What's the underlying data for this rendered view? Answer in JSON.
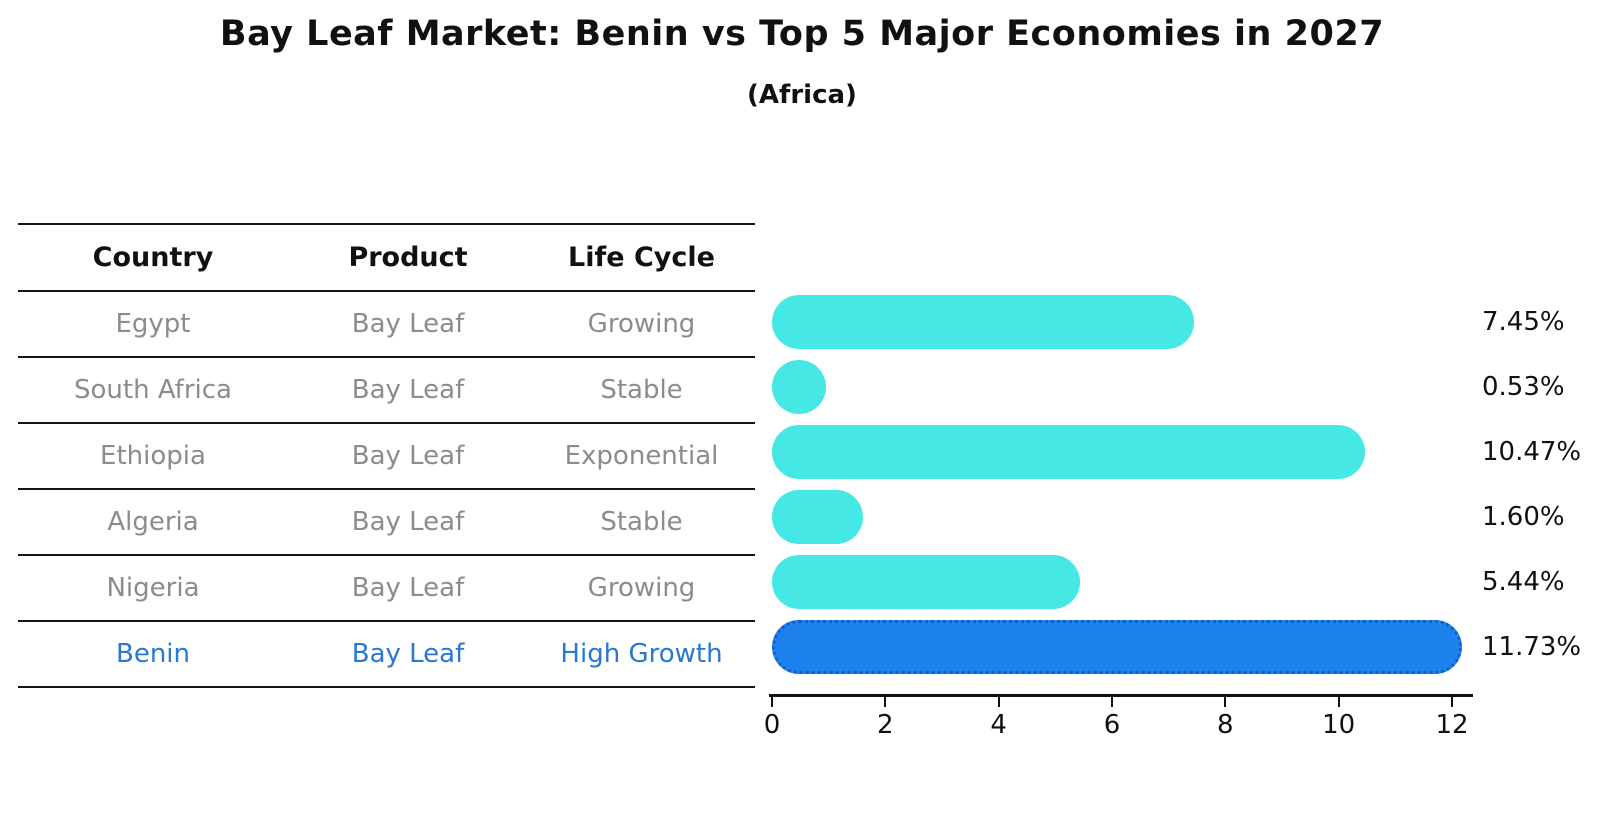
{
  "title": "Bay Leaf Market: Benin vs Top 5 Major Economies in 2027",
  "subtitle": "(Africa)",
  "table": {
    "headers": [
      "Country",
      "Product",
      "Life Cycle"
    ],
    "rows": [
      {
        "country": "Egypt",
        "product": "Bay Leaf",
        "life_cycle": "Growing",
        "value": 7.45,
        "label": "7.45%",
        "highlight": false
      },
      {
        "country": "South Africa",
        "product": "Bay Leaf",
        "life_cycle": "Stable",
        "value": 0.53,
        "label": "0.53%",
        "highlight": false
      },
      {
        "country": "Ethiopia",
        "product": "Bay Leaf",
        "life_cycle": "Exponential",
        "value": 10.47,
        "label": "10.47%",
        "highlight": false
      },
      {
        "country": "Algeria",
        "product": "Bay Leaf",
        "life_cycle": "Stable",
        "value": 1.6,
        "label": "1.60%",
        "highlight": false
      },
      {
        "country": "Nigeria",
        "product": "Bay Leaf",
        "life_cycle": "Growing",
        "value": 5.44,
        "label": "5.44%",
        "highlight": false
      },
      {
        "country": "Benin",
        "product": "Bay Leaf",
        "life_cycle": "High Growth",
        "value": 11.73,
        "label": "11.73%",
        "highlight": true
      }
    ]
  },
  "chart_data": {
    "type": "bar",
    "orientation": "horizontal",
    "title": "Bay Leaf Market: Benin vs Top 5 Major Economies in 2027",
    "subtitle": "(Africa)",
    "categories": [
      "Egypt",
      "South Africa",
      "Ethiopia",
      "Algeria",
      "Nigeria",
      "Benin"
    ],
    "values": [
      7.45,
      0.53,
      10.47,
      1.6,
      5.44,
      11.73
    ],
    "bar_labels": [
      "7.45%",
      "0.53%",
      "10.47%",
      "1.60%",
      "5.44%",
      "11.73%"
    ],
    "highlight_category": "Benin",
    "xlabel": "",
    "ylabel": "",
    "xlim": [
      0,
      12.4
    ],
    "xticks": [
      0,
      2,
      4,
      6,
      8,
      10,
      12
    ],
    "grid": false,
    "legend": false,
    "colors": {
      "bar_default": "#45e8e4",
      "bar_highlight": "#1e82ee",
      "bar_highlight_border": "#1160c8",
      "row_text": "#8c8c8c",
      "highlight_text": "#2878d4",
      "heading_text": "#111111"
    }
  }
}
